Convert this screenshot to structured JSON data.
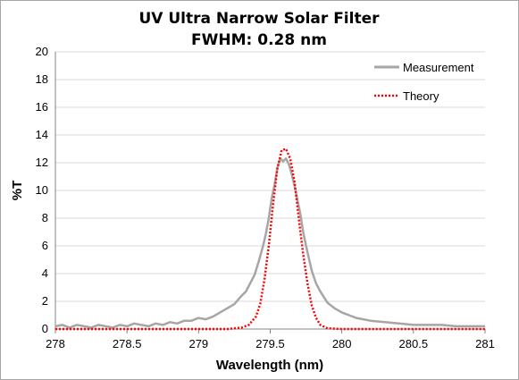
{
  "chart_data": {
    "type": "line",
    "title": "UV Ultra Narrow Solar Filter",
    "subtitle": "FWHM: 0.28 nm",
    "xlabel": "Wavelength (nm)",
    "ylabel": "%T",
    "xlim": [
      278,
      281
    ],
    "ylim": [
      0,
      20
    ],
    "x_ticks": [
      "278",
      "278.5",
      "279",
      "279.5",
      "280",
      "280.5",
      "281"
    ],
    "y_ticks": [
      "0",
      "2",
      "4",
      "6",
      "8",
      "10",
      "12",
      "14",
      "16",
      "18",
      "20"
    ],
    "grid": true,
    "legend_position": "top-right",
    "series": [
      {
        "name": "Measurement",
        "color": "#a6a6a6",
        "style": "solid",
        "x": [
          278.0,
          278.05,
          278.1,
          278.15,
          278.2,
          278.25,
          278.3,
          278.35,
          278.4,
          278.45,
          278.5,
          278.55,
          278.6,
          278.65,
          278.7,
          278.75,
          278.8,
          278.85,
          278.9,
          278.95,
          279.0,
          279.05,
          279.1,
          279.15,
          279.2,
          279.25,
          279.3,
          279.33,
          279.36,
          279.39,
          279.42,
          279.45,
          279.47,
          279.49,
          279.51,
          279.53,
          279.55,
          279.57,
          279.59,
          279.61,
          279.63,
          279.65,
          279.67,
          279.69,
          279.71,
          279.73,
          279.75,
          279.77,
          279.79,
          279.82,
          279.85,
          279.9,
          279.95,
          280.0,
          280.05,
          280.1,
          280.15,
          280.2,
          280.3,
          280.4,
          280.5,
          280.6,
          280.7,
          280.8,
          280.9,
          281.0
        ],
        "y": [
          0.2,
          0.3,
          0.1,
          0.3,
          0.2,
          0.1,
          0.3,
          0.2,
          0.1,
          0.3,
          0.2,
          0.4,
          0.3,
          0.2,
          0.4,
          0.3,
          0.5,
          0.4,
          0.6,
          0.6,
          0.8,
          0.7,
          0.9,
          1.2,
          1.5,
          1.8,
          2.4,
          2.7,
          3.3,
          3.9,
          4.9,
          6.0,
          6.9,
          8.0,
          9.4,
          10.4,
          11.6,
          12.3,
          12.1,
          12.3,
          11.9,
          11.2,
          10.3,
          9.3,
          8.3,
          7.0,
          6.0,
          5.1,
          4.2,
          3.3,
          2.7,
          1.9,
          1.5,
          1.2,
          1.0,
          0.8,
          0.7,
          0.6,
          0.5,
          0.4,
          0.3,
          0.3,
          0.3,
          0.2,
          0.2,
          0.2
        ]
      },
      {
        "name": "Theory",
        "color": "#ff0000",
        "style": "dotted",
        "x": [
          278.0,
          278.5,
          279.0,
          279.2,
          279.3,
          279.35,
          279.4,
          279.43,
          279.46,
          279.49,
          279.52,
          279.55,
          279.58,
          279.61,
          279.64,
          279.67,
          279.7,
          279.73,
          279.76,
          279.79,
          279.82,
          279.85,
          279.9,
          280.0,
          280.5,
          281.0
        ],
        "y": [
          0.0,
          0.0,
          0.0,
          0.0,
          0.1,
          0.3,
          0.9,
          1.8,
          3.6,
          6.0,
          9.0,
          11.6,
          12.9,
          13.0,
          12.3,
          10.6,
          7.9,
          5.4,
          3.3,
          1.7,
          0.8,
          0.3,
          0.05,
          0.0,
          0.0,
          0.0
        ]
      }
    ]
  }
}
